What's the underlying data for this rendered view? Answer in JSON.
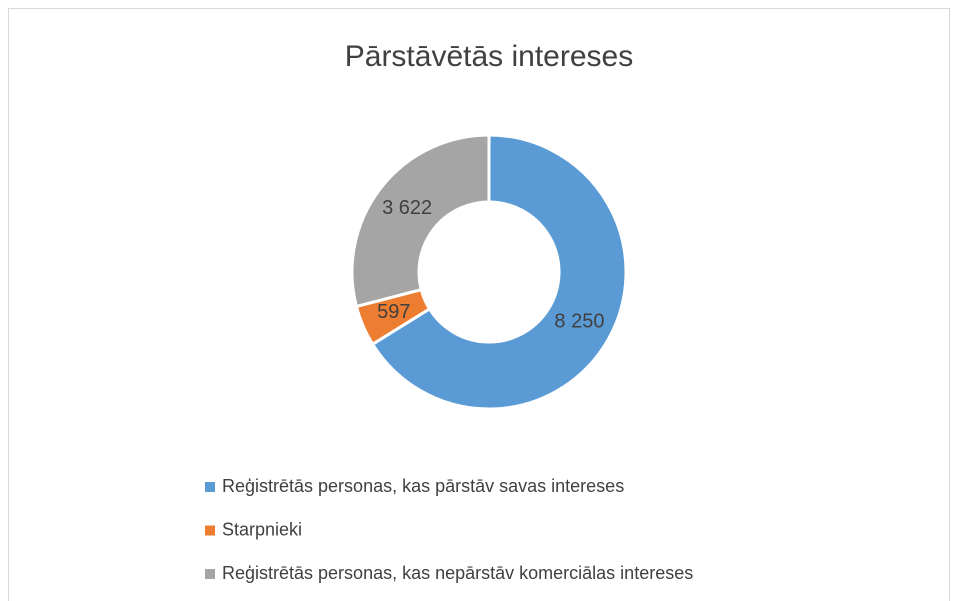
{
  "chart_data": {
    "type": "donut",
    "title": "Pārstāvētās intereses",
    "categories": [
      "Reģistrētās personas, kas pārstāv savas intereses",
      "Starpnieki",
      "Reģistrētās personas, kas nepārstāv komerciālas intereses"
    ],
    "values": [
      8250,
      597,
      3622
    ],
    "value_labels": [
      "8 250",
      "597",
      "3 622"
    ],
    "colors": [
      "#5b9bd5",
      "#ed7d31",
      "#a5a5a5"
    ],
    "legend": "bottom"
  }
}
